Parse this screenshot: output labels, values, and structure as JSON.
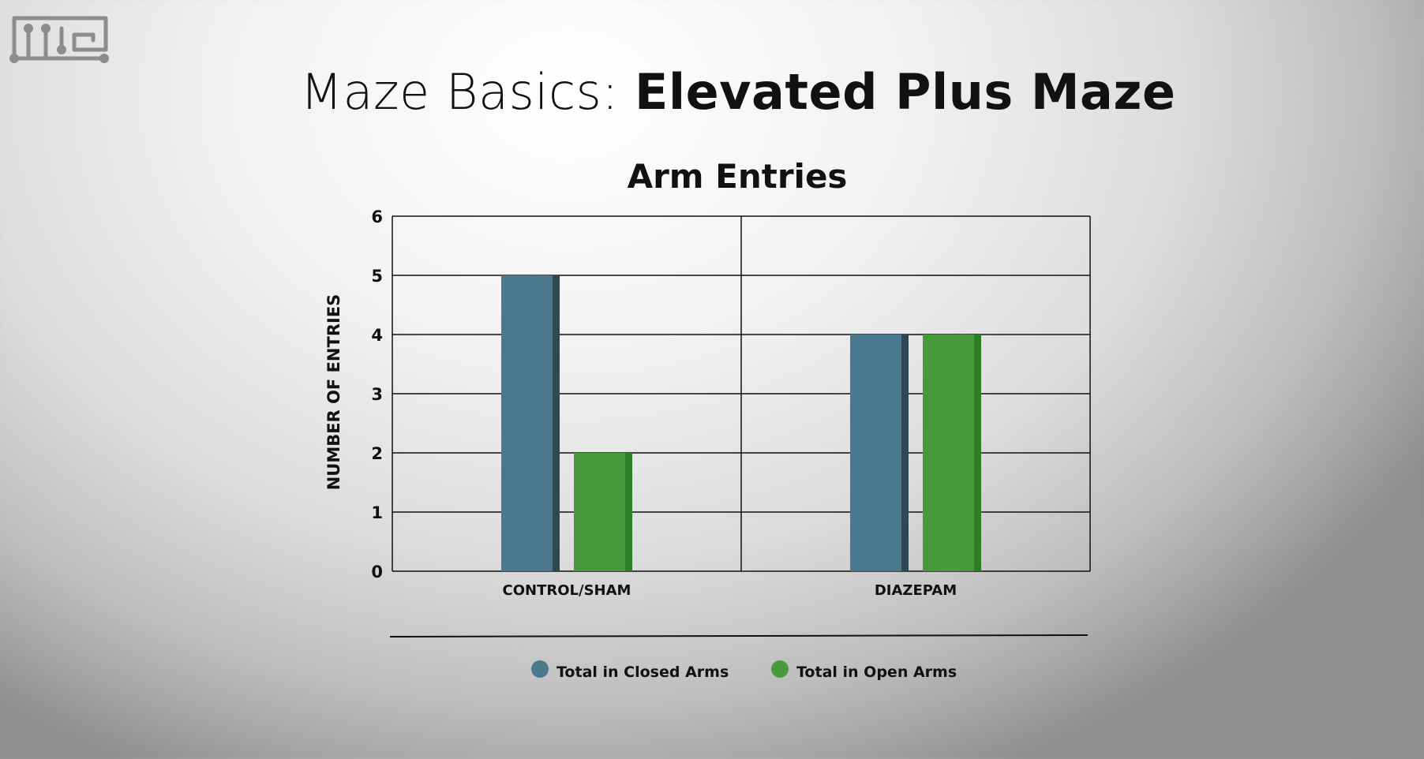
{
  "page": {
    "title_prefix": "Maze Basics: ",
    "title_main": "Elevated Plus Maze"
  },
  "colors": {
    "closed": "#4a788e",
    "closed_shade": "#2f4854",
    "open": "#479a3c",
    "open_shade": "#2e7d27"
  },
  "chart_data": {
    "type": "bar",
    "title": "Arm Entries",
    "xlabel": "",
    "ylabel": "NUMBER OF ENTRIES",
    "ylim": [
      0,
      6
    ],
    "yticks": [
      0,
      1,
      2,
      3,
      4,
      5,
      6
    ],
    "grid": true,
    "legend_position": "bottom",
    "categories": [
      "CONTROL/SHAM",
      "DIAZEPAM"
    ],
    "series": [
      {
        "name": "Total in Closed Arms",
        "values": [
          5,
          4
        ]
      },
      {
        "name": "Total in Open Arms",
        "values": [
          2,
          4
        ]
      }
    ]
  }
}
